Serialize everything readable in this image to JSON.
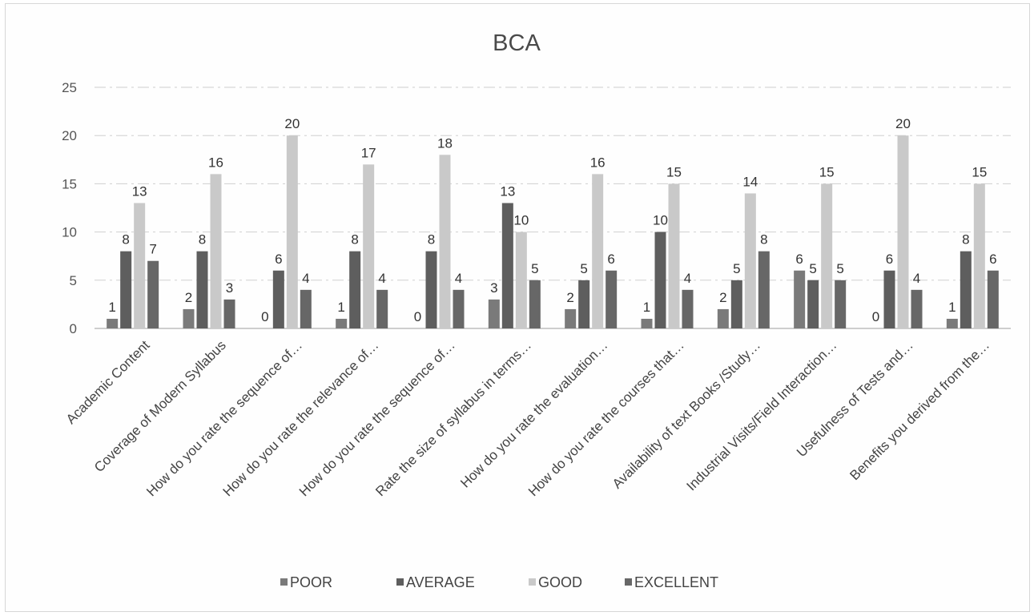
{
  "chart_data": {
    "type": "bar",
    "title": "BCA",
    "xlabel": "",
    "ylabel": "",
    "ylim": [
      0,
      25
    ],
    "yticks": [
      0,
      5,
      10,
      15,
      20,
      25
    ],
    "grid": true,
    "legend_position": "bottom",
    "categories": [
      "Academic Content",
      "Coverage of Modern Syllabus",
      "How do you rate the sequence of…",
      "How do you rate the relevance of…",
      "How do you rate the sequence of…",
      "Rate the size of syllabus in terms…",
      "How do you rate the evaluation…",
      "How do you rate the courses that…",
      "Availability of text Books /Study…",
      "Industrial Visits/Field Interaction…",
      "Usefulness of Tests and…",
      "Benefits you derived from the…"
    ],
    "series": [
      {
        "name": "POOR",
        "color": "#7a7a7a",
        "values": [
          1,
          2,
          0,
          1,
          0,
          3,
          2,
          1,
          2,
          6,
          0,
          1
        ]
      },
      {
        "name": "AVERAGE",
        "color": "#5e5e5e",
        "values": [
          8,
          8,
          6,
          8,
          8,
          13,
          5,
          10,
          5,
          5,
          6,
          8
        ]
      },
      {
        "name": "GOOD",
        "color": "#c9c9c9",
        "values": [
          13,
          16,
          20,
          17,
          18,
          10,
          16,
          15,
          14,
          15,
          20,
          15
        ]
      },
      {
        "name": "EXCELLENT",
        "color": "#676767",
        "values": [
          7,
          3,
          4,
          4,
          4,
          5,
          6,
          4,
          8,
          5,
          4,
          6
        ]
      }
    ]
  }
}
